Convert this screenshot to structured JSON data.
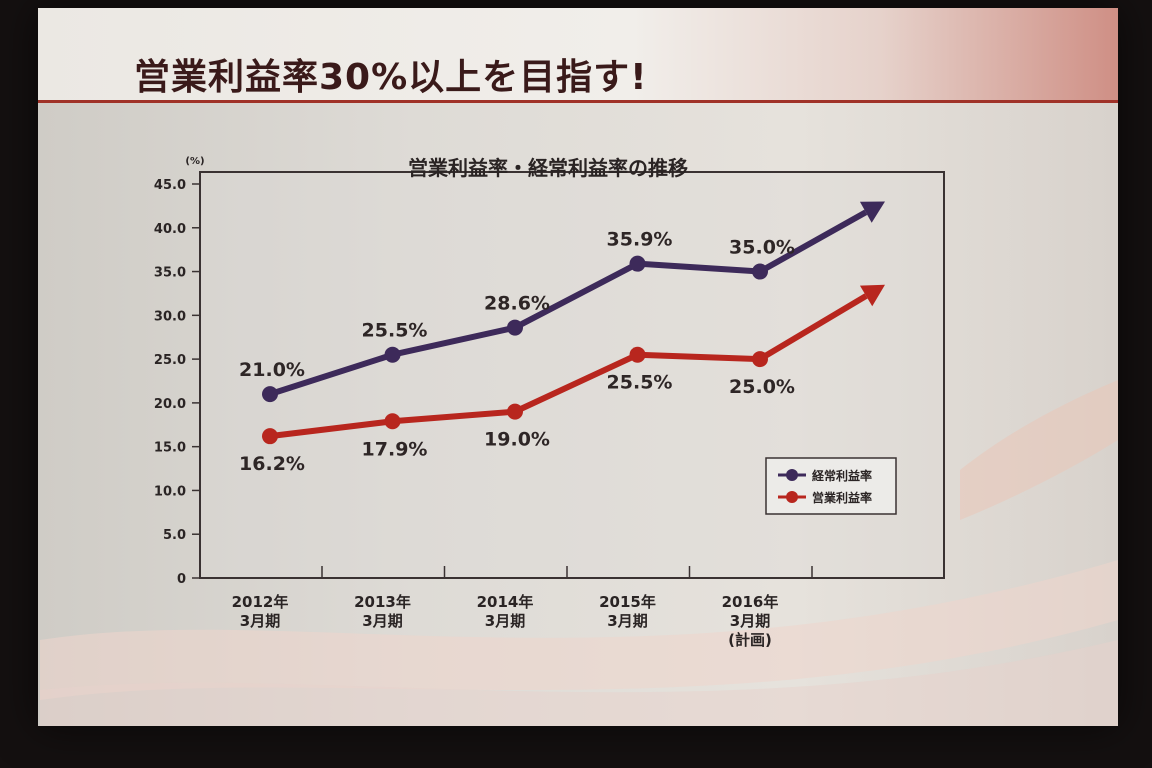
{
  "slide": {
    "title": "営業利益率30%以上を目指す!"
  },
  "chart_data": {
    "type": "line",
    "title": "営業利益率・経常利益率の推移",
    "ylabel": "(%)",
    "ylim": [
      0,
      45
    ],
    "yticks": [
      "45.0",
      "40.0",
      "35.0",
      "30.0",
      "25.0",
      "20.0",
      "15.0",
      "10.0",
      "5.0",
      "0"
    ],
    "categories": [
      [
        "2012年",
        "3月期"
      ],
      [
        "2013年",
        "3月期"
      ],
      [
        "2014年",
        "3月期"
      ],
      [
        "2015年",
        "3月期"
      ],
      [
        "2016年",
        "3月期",
        "(計画)"
      ]
    ],
    "series": [
      {
        "name": "経常利益率",
        "color": "#3d2a5a",
        "values": [
          21.0,
          25.5,
          28.6,
          35.9,
          35.0
        ],
        "labels": [
          "21.0%",
          "25.5%",
          "28.6%",
          "35.9%",
          "35.0%"
        ],
        "trend_arrow_to": 43.0
      },
      {
        "name": "営業利益率",
        "color": "#b8261e",
        "values": [
          16.2,
          17.9,
          19.0,
          25.5,
          25.0
        ],
        "labels": [
          "16.2%",
          "17.9%",
          "19.0%",
          "25.5%",
          "25.0%"
        ],
        "trend_arrow_to": 33.5
      }
    ],
    "legend": {
      "position": "bottom-right"
    },
    "grid": false
  }
}
